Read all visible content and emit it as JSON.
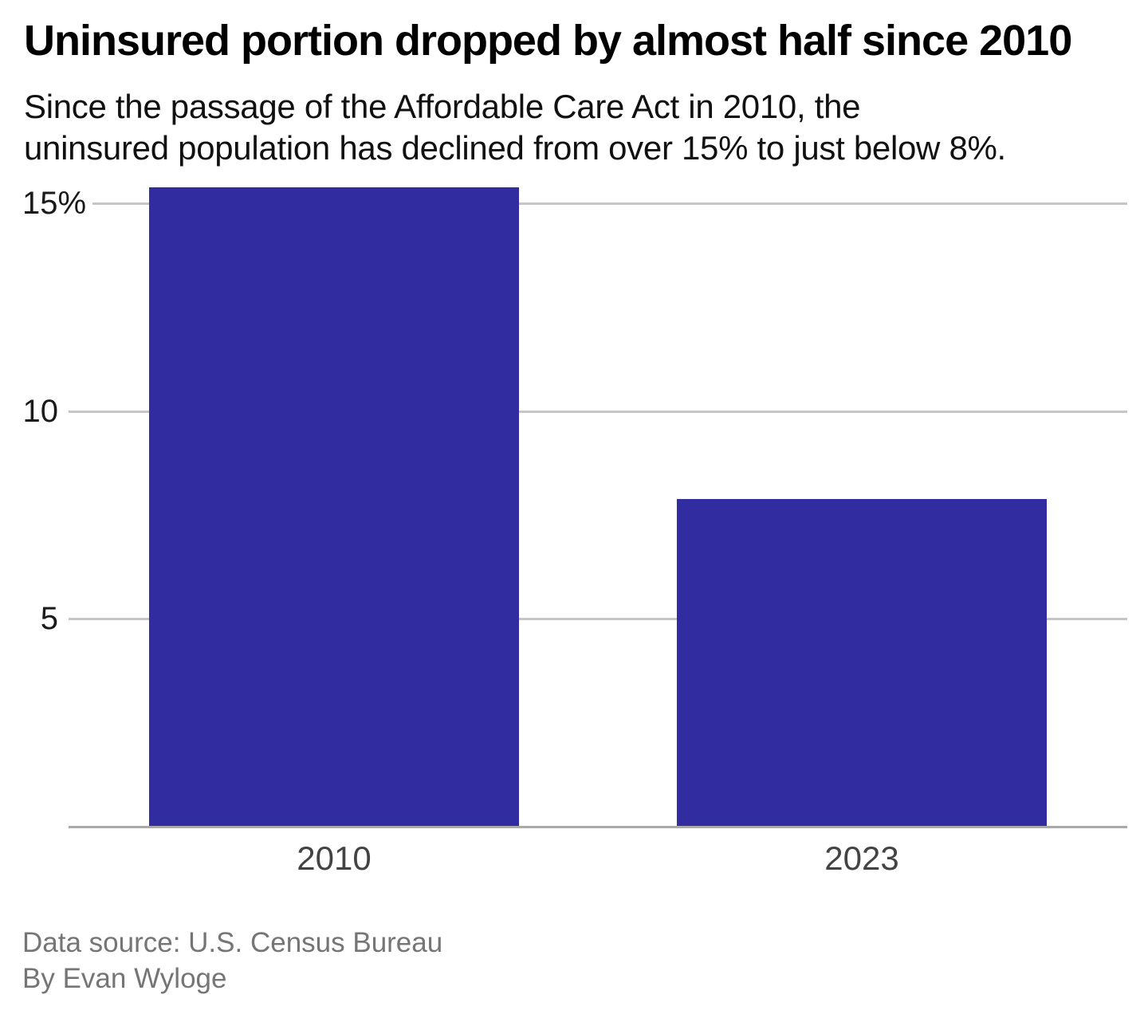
{
  "header": {
    "subtitle_lines": [
      "Since the passage of the Affordable Care Act in 2010, the",
      "uninsured population has declined from over 15% to just below 8%."
    ]
  },
  "footer": {
    "source": "Data source: U.S. Census Bureau",
    "byline": "By Evan Wyloge"
  },
  "colors": {
    "bar": "#312ca0",
    "gridline": "#c6c6c6",
    "baseline": "#a9a9a9",
    "footer_text": "#757575"
  },
  "chart_data": {
    "type": "bar",
    "title": "Uninsured portion dropped by almost half since 2010",
    "subtitle": "Since the passage of the Affordable Care Act in 2010, the uninsured population has declined from over 15% to just below 8%.",
    "categories": [
      "2010",
      "2023"
    ],
    "values": [
      15.4,
      7.9
    ],
    "unit": "%",
    "xlabel": "",
    "ylabel": "",
    "ylim": [
      0,
      15.4
    ],
    "y_ticks": [
      {
        "value": 15,
        "label": "15%"
      },
      {
        "value": 10,
        "label": "10"
      },
      {
        "value": 5,
        "label": "5"
      }
    ],
    "grid": true,
    "legend": false
  }
}
